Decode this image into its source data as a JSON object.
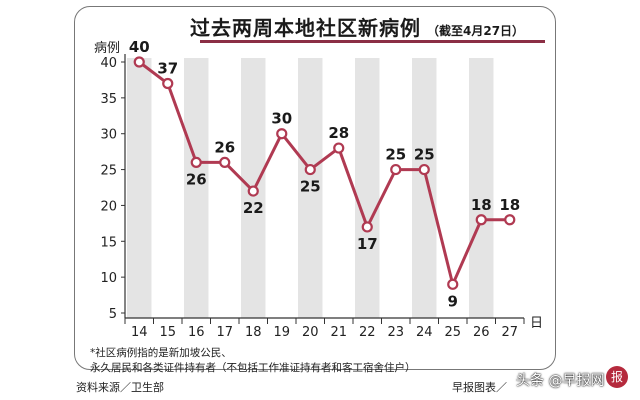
{
  "header": {
    "title": "过去两周本地社区新病例",
    "subtitle": "（截至4月27日）"
  },
  "chart_data": {
    "type": "line",
    "title": "过去两周本地社区新病例",
    "subtitle": "（截至4月27日）",
    "xlabel": "日",
    "ylabel": "病例",
    "categories": [
      "14",
      "15",
      "16",
      "17",
      "18",
      "19",
      "20",
      "21",
      "22",
      "23",
      "24",
      "25",
      "26",
      "27"
    ],
    "values": [
      40,
      37,
      26,
      26,
      22,
      30,
      25,
      28,
      17,
      25,
      25,
      9,
      18,
      18
    ],
    "yticks": [
      5,
      10,
      15,
      20,
      25,
      30,
      35,
      40
    ],
    "ylim": [
      5,
      40
    ],
    "line_color": "#b03a52",
    "stripe_color": "#e4e4e4",
    "grid": false,
    "data_labels": true
  },
  "footnote": {
    "line1": "*社区病例指的是新加坡公民、",
    "line2": "永久居民和各类证件持有者（不包括工作准证持有者和客工宿舍住户）"
  },
  "source": {
    "left": "资料来源／卫生部",
    "right": "早报图表／"
  },
  "watermark": {
    "text": "头条 @早报网",
    "icon": "newspaper-logo-icon"
  }
}
